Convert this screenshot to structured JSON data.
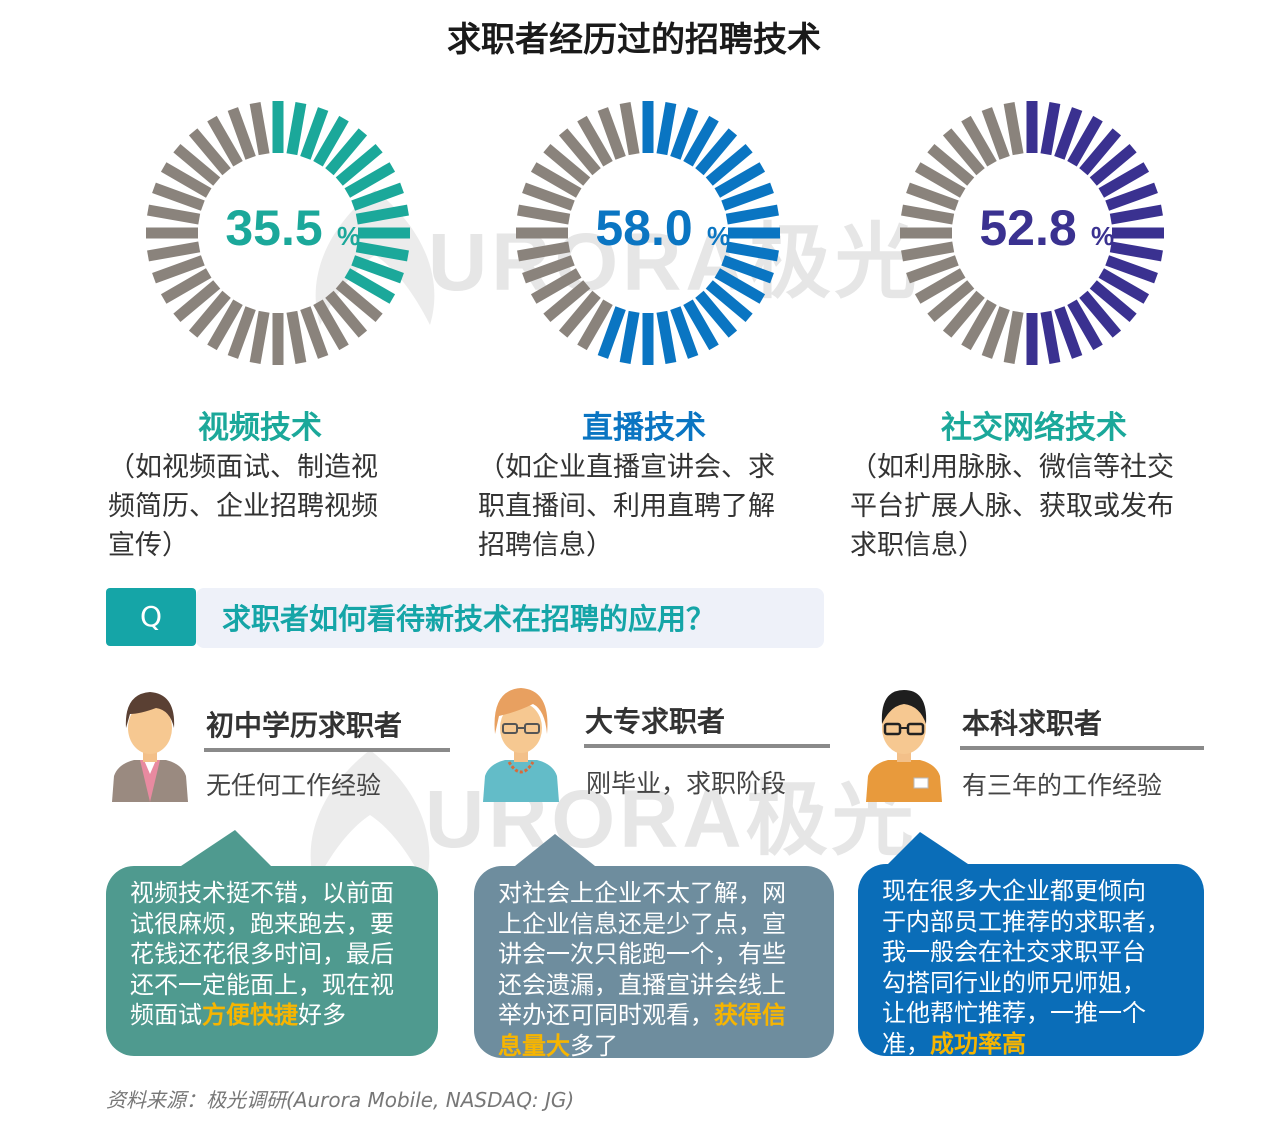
{
  "title": "求职者经历过的招聘技术",
  "watermark": {
    "text": "URORA极光"
  },
  "colors": {
    "teal": "#1ba89a",
    "blue": "#0a75c2",
    "purple": "#3a3190",
    "gray": "#8a837c",
    "highlight": "#f7b500",
    "q_accent": "#15a5a7"
  },
  "chart_data": [
    {
      "type": "pie",
      "name": "视频技术",
      "value": 35.5,
      "unit": "%",
      "value_label": "35.5",
      "color": "#1ba89a"
    },
    {
      "type": "pie",
      "name": "直播技术",
      "value": 58.0,
      "unit": "%",
      "value_label": "58.0",
      "color": "#0a75c2"
    },
    {
      "type": "pie",
      "name": "社交网络技术",
      "value": 52.8,
      "unit": "%",
      "value_label": "52.8",
      "color": "#3a3190"
    }
  ],
  "techs": [
    {
      "name": "视频技术",
      "desc_lines": [
        "（如视频面试、制造视",
        "频简历、企业招聘视频",
        "宣传）"
      ]
    },
    {
      "name": "直播技术",
      "desc_lines": [
        "（如企业直播宣讲会、求",
        "职直播间、利用直聘了解",
        "招聘信息）"
      ]
    },
    {
      "name": "社交网络技术",
      "desc_lines": [
        "（如利用脉脉、微信等社交",
        "平台扩展人脉、获取或发布",
        "求职信息）"
      ]
    }
  ],
  "question": {
    "badge": "Q",
    "text": "求职者如何看待新技术在招聘的应用？"
  },
  "personas": [
    {
      "title": "初中学历求职者",
      "subtitle": "无任何工作经验",
      "avatar_icon": "person-pink-shirt-icon",
      "quote": {
        "lines": [
          "视频技术挺不错，以前面",
          "试很麻烦，跑来跑去，要",
          "花钱还花很多时间，最后",
          "还不一定能面上，现在视"
        ],
        "last_plain": "频面试",
        "highlight": "方便快捷",
        "tail": "好多",
        "bg": "#4f9a8f"
      }
    },
    {
      "title": "大专求职者",
      "subtitle": "刚毕业，求职阶段",
      "avatar_icon": "person-glasses-woman-icon",
      "quote": {
        "lines": [
          "对社会上企业不太了解，网",
          "上企业信息还是少了点，宣",
          "讲会一次只能跑一个，有些",
          "还会遗漏，直播宣讲会线上"
        ],
        "l5_plain": "举办还可同时观看，",
        "l5_hl": "获得信",
        "l6_hl": "息量大",
        "l6_plain": "多了",
        "bg": "#6e8d9e"
      }
    },
    {
      "title": "本科求职者",
      "subtitle": "有三年的工作经验",
      "avatar_icon": "person-glasses-badge-icon",
      "quote": {
        "lines": [
          "现在很多大企业都更倾向",
          "于内部员工推荐的求职者，",
          "我一般会在社交求职平台",
          "勾搭同行业的师兄师姐，",
          "让他帮忙推荐，一推一个"
        ],
        "l6_plain": "准，",
        "l6_hl": "成功率高",
        "bg": "#0a6db8"
      }
    }
  ],
  "source": "资料来源：极光调研(Aurora Mobile, NASDAQ: JG)"
}
